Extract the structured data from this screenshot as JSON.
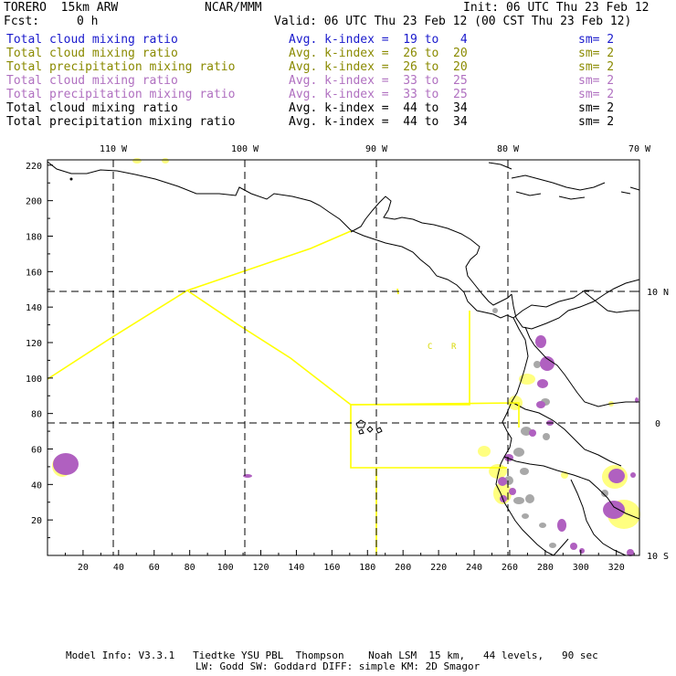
{
  "header": {
    "model": "TORERO  15km ARW",
    "org": "NCAR/MMM",
    "init": "Init: 06 UTC Thu 23 Feb 12",
    "fcst_label": "Fcst:",
    "fcst_value": "0 h",
    "valid": "Valid: 06 UTC Thu 23 Feb 12 (00 CST Thu 23 Feb 12)"
  },
  "legend": [
    {
      "field": "Total cloud mixing ratio",
      "kindex": "Avg. k-index =  19 to   4",
      "sm": "sm= 2",
      "color": "#1a1acc"
    },
    {
      "field": "Total cloud mixing ratio",
      "kindex": "Avg. k-index =  26 to  20",
      "sm": "sm= 2",
      "color": "#8a8a00"
    },
    {
      "field": "Total precipitation mixing ratio",
      "kindex": "Avg. k-index =  26 to  20",
      "sm": "sm= 2",
      "color": "#8a8a00"
    },
    {
      "field": "Total cloud mixing ratio",
      "kindex": "Avg. k-index =  33 to  25",
      "sm": "sm= 2",
      "color": "#b070c0"
    },
    {
      "field": "Total precipitation mixing ratio",
      "kindex": "Avg. k-index =  33 to  25",
      "sm": "sm= 2",
      "color": "#b070c0"
    },
    {
      "field": "Total cloud mixing ratio",
      "kindex": "Avg. k-index =  44 to  34",
      "sm": "sm= 2",
      "color": "#000000"
    },
    {
      "field": "Total precipitation mixing ratio",
      "kindex": "Avg. k-index =  44 to  34",
      "sm": "sm= 2",
      "color": "#000000"
    }
  ],
  "map": {
    "top_lon_labels": [
      "110 W",
      "100 W",
      "90 W",
      "80 W",
      "70 W"
    ],
    "right_lat_labels": [
      "10 N",
      "0",
      "10 S"
    ],
    "x_ticks": [
      "20",
      "40",
      "60",
      "80",
      "100",
      "120",
      "140",
      "160",
      "180",
      "200",
      "220",
      "240",
      "260",
      "280",
      "300",
      "320"
    ],
    "y_ticks": [
      "20",
      "40",
      "60",
      "80",
      "100",
      "120",
      "140",
      "160",
      "180",
      "200",
      "220"
    ],
    "region_labels": [
      "C",
      "R"
    ],
    "colors": {
      "yellow": "#ffff80",
      "yellow_line": "#ffff00",
      "purple": "#b060c0",
      "gray": "#a8a8a8"
    }
  },
  "footer": {
    "line1": "Model Info: V3.3.1   Tiedtke YSU PBL  Thompson    Noah LSM  15 km,   44 levels,   90 sec",
    "line2": "LW: Godd SW: Goddard DIFF: simple KM: 2D Smagor"
  }
}
